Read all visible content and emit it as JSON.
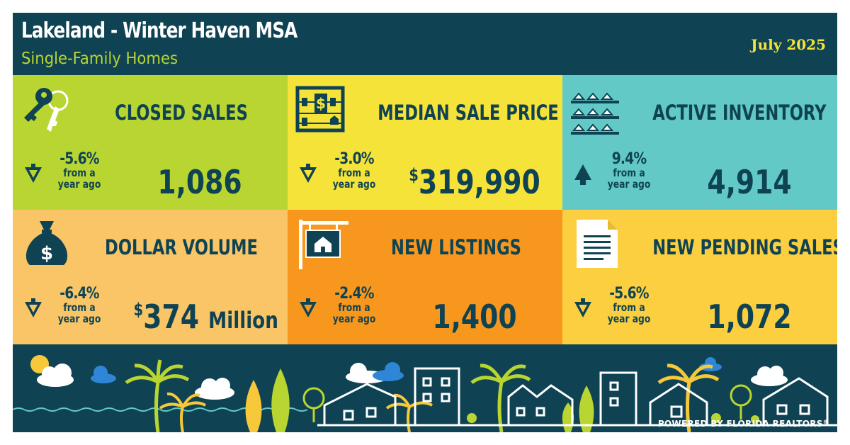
{
  "header": {
    "title": "Lakeland - Winter Haven MSA",
    "subtitle": "Single-Family Homes",
    "date": "July 2025"
  },
  "colors": {
    "navy": "#0f4353",
    "lime": "#b9d531",
    "yellow": "#f6e33a",
    "teal": "#62c9c6",
    "light_orange": "#f9c567",
    "orange": "#f8971d",
    "gold": "#fccf40"
  },
  "tiles": [
    {
      "label": "CLOSED SALES",
      "change": "-5.6%",
      "from": "from a",
      "period": "year ago",
      "direction": "down",
      "value": "1,086",
      "icon": "keys-icon",
      "color": "#b9d531"
    },
    {
      "label": "MEDIAN SALE PRICE",
      "change": "-3.0%",
      "from": "from a",
      "period": "year ago",
      "direction": "down",
      "prefix": "$",
      "value": "319,990",
      "icon": "abacus-icon",
      "color": "#f6e33a"
    },
    {
      "label": "ACTIVE INVENTORY",
      "change": "9.4%",
      "from": "from a",
      "period": "year ago",
      "direction": "up",
      "value": "4,914",
      "icon": "houses-shelf-icon",
      "color": "#62c9c6"
    },
    {
      "label": "DOLLAR VOLUME",
      "change": "-6.4%",
      "from": "from a",
      "period": "year ago",
      "direction": "down",
      "prefix": "$",
      "value": "374",
      "unit": "Million",
      "icon": "money-bag-icon",
      "color": "#f9c567"
    },
    {
      "label": "NEW LISTINGS",
      "change": "-2.4%",
      "from": "from a",
      "period": "year ago",
      "direction": "down",
      "value": "1,400",
      "icon": "for-sale-sign-icon",
      "color": "#f8971d"
    },
    {
      "label": "NEW PENDING SALES",
      "change": "-5.6%",
      "from": "from a",
      "period": "year ago",
      "direction": "down",
      "value": "1,072",
      "icon": "document-icon",
      "color": "#fccf40"
    }
  ],
  "footer": {
    "powered_by": "POWERED BY FLORIDA REALTORS",
    "registered": "®"
  }
}
